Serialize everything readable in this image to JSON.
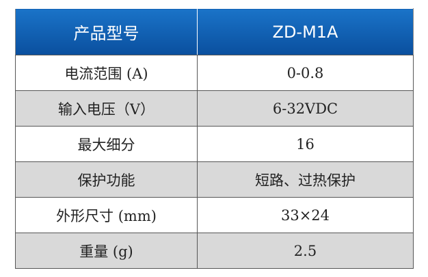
{
  "table": {
    "header": [
      "产品型号",
      "ZD-M1A"
    ],
    "rows": [
      [
        "电流范围 (A)",
        "0-0.8"
      ],
      [
        "输入电压（V）",
        "6-32VDC"
      ],
      [
        "最大细分",
        "16"
      ],
      [
        "保护功能",
        "短路、过热保护"
      ],
      [
        "外形尺寸 (mm)",
        "33×24"
      ],
      [
        "重量 (g)",
        "2.5"
      ]
    ]
  }
}
